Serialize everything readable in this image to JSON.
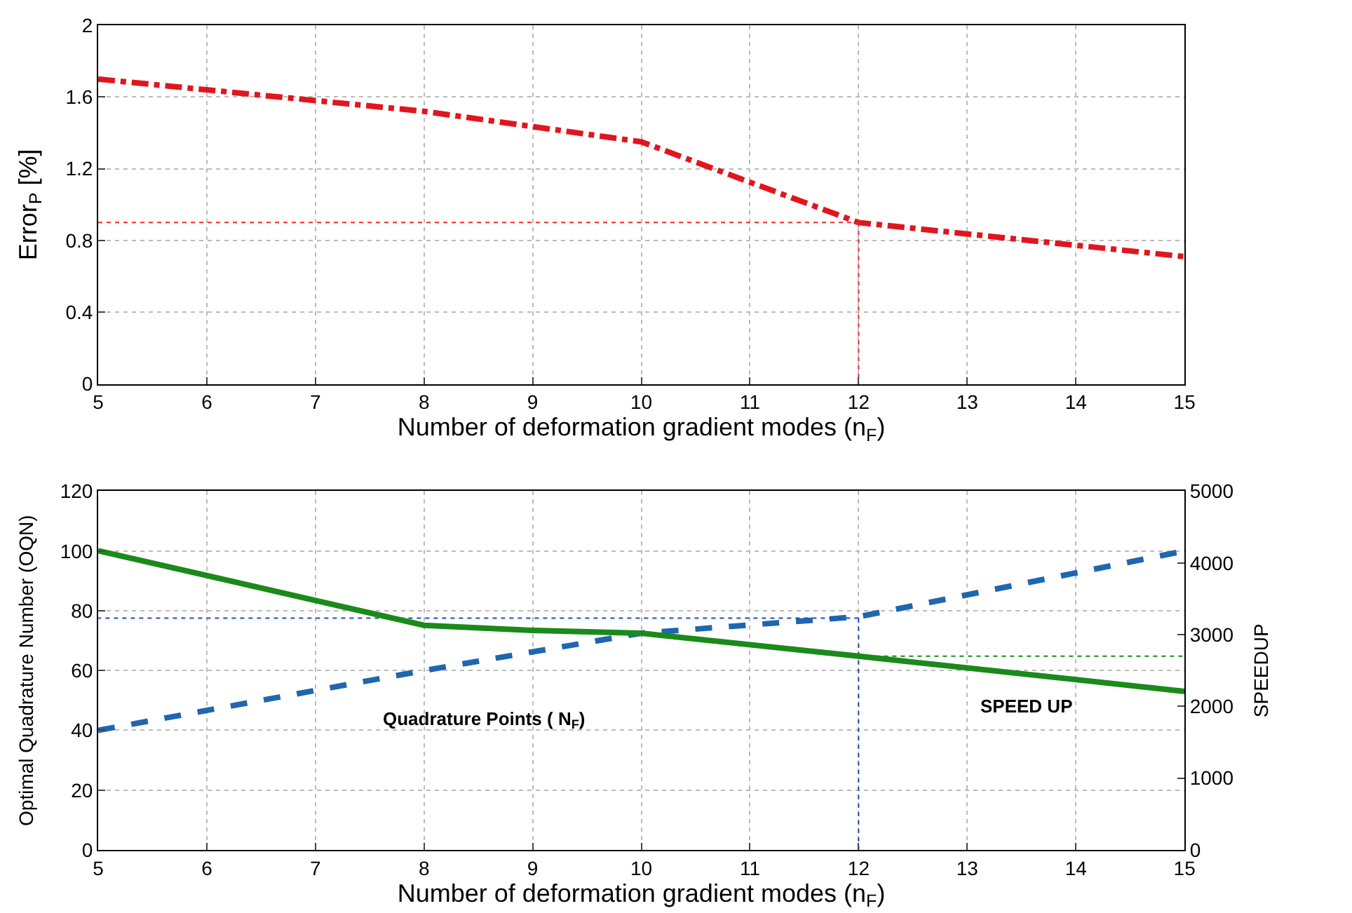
{
  "chart_data": [
    {
      "type": "line",
      "xlabel": "Number of deformation gradient modes (n$_{F}$)",
      "ylabel": "Error$_{P}$ [%]",
      "xlim": [
        5,
        15
      ],
      "xticks": [
        5,
        6,
        7,
        8,
        9,
        10,
        11,
        12,
        13,
        14,
        15
      ],
      "ylim": [
        0,
        2
      ],
      "yticks": [
        0,
        0.4,
        0.8,
        1.2,
        1.6,
        2
      ],
      "grid": true,
      "marker": "none",
      "series": [
        {
          "color": "#e0161e",
          "line_style": "dashdot",
          "x": [
            5,
            8,
            10,
            12,
            15
          ],
          "values": [
            1.7,
            1.52,
            1.35,
            0.9,
            0.71
          ]
        },
        {
          "color": "#f0282d",
          "line_style": "dotted",
          "x": [
            5,
            12
          ],
          "values": [
            0.9,
            0.9
          ]
        },
        {
          "color": "#f0282d",
          "line_style": "dotted",
          "x": [
            12,
            12
          ],
          "values": [
            0.9,
            0
          ]
        }
      ]
    },
    {
      "type": "line",
      "xlabel": "Number of deformation gradient modes (n$_{F}$)",
      "ylabel": "Optimal Quadrature Number (OQN)",
      "y2label": "SPEEDUP",
      "xlim": [
        5,
        15
      ],
      "xticks": [
        5,
        6,
        7,
        8,
        9,
        10,
        11,
        12,
        13,
        14,
        15
      ],
      "ylim": [
        0,
        120
      ],
      "yticks": [
        0,
        20,
        40,
        60,
        80,
        100,
        120
      ],
      "y2lim": [
        0,
        5000
      ],
      "y2ticks": [
        0,
        1000,
        2000,
        3000,
        4000,
        5000
      ],
      "grid": true,
      "marker": "none",
      "annotations": [
        "Quadrature Points ( N$_{F}$)",
        "SPEED UP"
      ],
      "series": [
        {
          "color": "#1f66b0",
          "line_style": "dashed",
          "x": [
            5,
            8,
            10,
            12,
            15
          ],
          "values": [
            40,
            60,
            72.5,
            78,
            100
          ]
        },
        {
          "color": "#1a8a1a",
          "line_style": "solid",
          "axis": "y2",
          "x": [
            5,
            8,
            9,
            10,
            12,
            15
          ],
          "values": [
            4170,
            3130,
            3060,
            3020,
            2700,
            2210
          ]
        },
        {
          "color": "#1f4fb0",
          "line_style": "dotted",
          "x": [
            12,
            5
          ],
          "values": [
            77.5,
            77.5
          ]
        },
        {
          "color": "#1f4fb0",
          "line_style": "dotted",
          "x": [
            12,
            12
          ],
          "values": [
            0,
            77.5
          ]
        },
        {
          "color": "#1a8a1a",
          "line_style": "dotted",
          "axis": "y2",
          "x": [
            12,
            15
          ],
          "values": [
            2700,
            2700
          ]
        }
      ]
    }
  ]
}
